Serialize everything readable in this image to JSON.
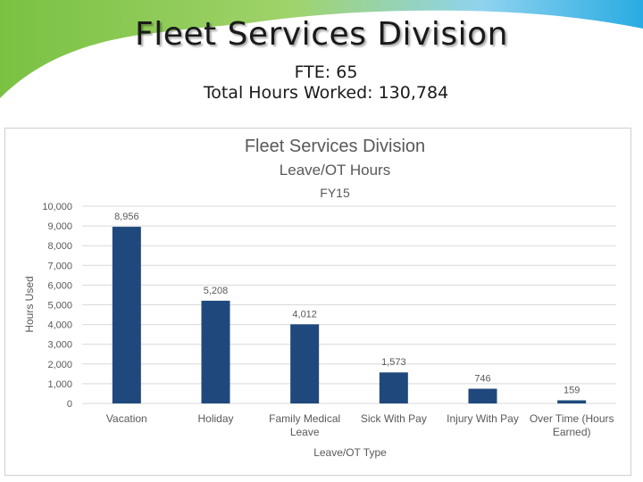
{
  "slide": {
    "title": "Fleet Services Division",
    "fte": "FTE: 65",
    "total_hours": "Total Hours Worked: 130,784"
  },
  "colors": {
    "bar": "#1f497d",
    "gridline": "#d9d9d9",
    "text": "#595959",
    "accent_green": "#8cc63f",
    "accent_blue": "#29abe2"
  },
  "chart_data": {
    "type": "bar",
    "title": "Fleet Services Division",
    "subtitle": "Leave/OT Hours",
    "subtitle2": "FY15",
    "xlabel": "Leave/OT Type",
    "ylabel": "Hours Used",
    "ylim": [
      0,
      10000
    ],
    "yticks": [
      0,
      1000,
      2000,
      3000,
      4000,
      5000,
      6000,
      7000,
      8000,
      9000,
      10000
    ],
    "ytick_labels": [
      "0",
      "1,000",
      "2,000",
      "3,000",
      "4,000",
      "5,000",
      "6,000",
      "7,000",
      "8,000",
      "9,000",
      "10,000"
    ],
    "grid": true,
    "categories": [
      [
        "Vacation"
      ],
      [
        "Holiday"
      ],
      [
        "Family Medical",
        "Leave"
      ],
      [
        "Sick With Pay"
      ],
      [
        "Injury With Pay"
      ],
      [
        "Over Time (Hours",
        "Earned)"
      ]
    ],
    "values": [
      8956,
      5208,
      4012,
      1573,
      746,
      159
    ],
    "value_labels": [
      "8,956",
      "5,208",
      "4,012",
      "1,573",
      "746",
      "159"
    ]
  }
}
